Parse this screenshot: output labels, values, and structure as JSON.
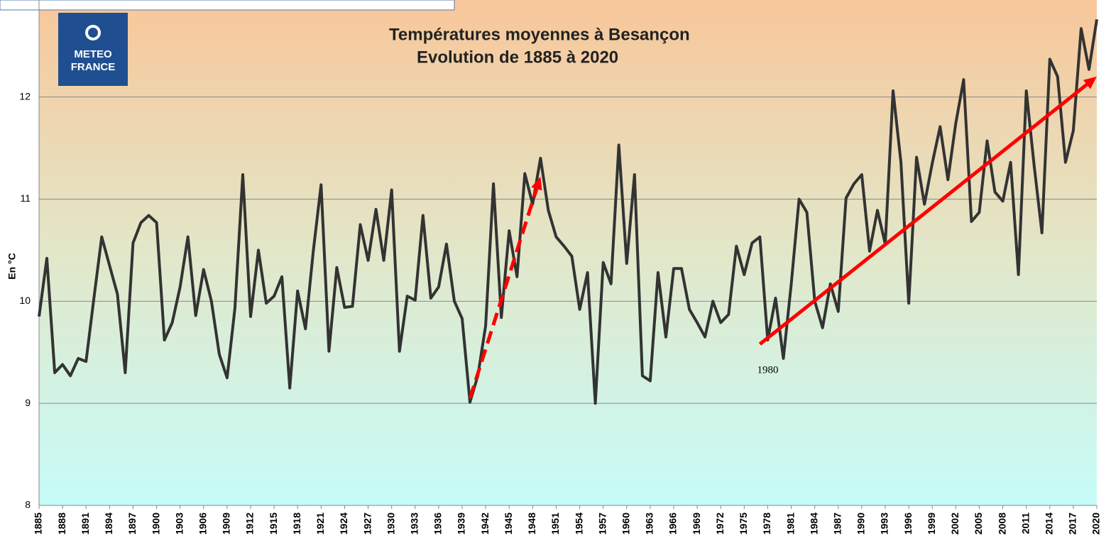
{
  "chart_data": {
    "type": "line",
    "title": [
      "Températures moyennes à Besançon",
      "Evolution de 1885 à 2020"
    ],
    "logo": [
      "METEO",
      "FRANCE"
    ],
    "y_label": "En °C",
    "color": "#333333",
    "x": [
      1885,
      1886,
      1887,
      1888,
      1889,
      1890,
      1891,
      1892,
      1893,
      1894,
      1895,
      1896,
      1897,
      1898,
      1899,
      1900,
      1901,
      1902,
      1903,
      1904,
      1905,
      1906,
      1907,
      1908,
      1909,
      1910,
      1911,
      1912,
      1913,
      1914,
      1915,
      1916,
      1917,
      1918,
      1919,
      1920,
      1921,
      1922,
      1923,
      1924,
      1925,
      1926,
      1927,
      1928,
      1929,
      1930,
      1931,
      1932,
      1933,
      1934,
      1935,
      1936,
      1937,
      1938,
      1939,
      1940,
      1941,
      1942,
      1943,
      1944,
      1945,
      1946,
      1947,
      1948,
      1949,
      1950,
      1951,
      1952,
      1953,
      1954,
      1955,
      1956,
      1957,
      1958,
      1959,
      1960,
      1961,
      1962,
      1963,
      1964,
      1965,
      1966,
      1967,
      1968,
      1969,
      1970,
      1971,
      1972,
      1973,
      1974,
      1975,
      1976,
      1977,
      1978,
      1979,
      1980,
      1981,
      1982,
      1983,
      1984,
      1985,
      1986,
      1987,
      1988,
      1989,
      1990,
      1991,
      1992,
      1993,
      1994,
      1995,
      1996,
      1997,
      1998,
      1999,
      2000,
      2001,
      2002,
      2003,
      2004,
      2005,
      2006,
      2007,
      2008,
      2009,
      2010,
      2011,
      2012,
      2013,
      2014,
      2015,
      2016,
      2017,
      2018,
      2019,
      2020
    ],
    "values": [
      9.85,
      10.42,
      9.3,
      9.38,
      9.27,
      9.44,
      9.41,
      10.03,
      10.63,
      10.35,
      10.07,
      9.3,
      10.57,
      10.77,
      10.84,
      10.77,
      9.62,
      9.79,
      10.14,
      10.63,
      9.86,
      10.31,
      10.0,
      9.48,
      9.25,
      9.93,
      11.24,
      9.85,
      10.5,
      9.98,
      10.05,
      10.24,
      9.15,
      10.1,
      9.73,
      10.49,
      11.14,
      9.51,
      10.33,
      9.94,
      9.95,
      10.75,
      10.4,
      10.9,
      10.4,
      11.09,
      9.51,
      10.05,
      10.01,
      10.84,
      10.03,
      10.14,
      10.56,
      10.0,
      9.83,
      9.01,
      9.27,
      9.76,
      11.15,
      9.84,
      10.69,
      10.24,
      11.25,
      10.95,
      11.4,
      10.89,
      10.63,
      10.54,
      10.44,
      9.92,
      10.28,
      9.0,
      10.38,
      10.17,
      11.53,
      10.37,
      11.24,
      9.27,
      9.22,
      10.28,
      9.65,
      10.32,
      10.32,
      9.92,
      9.79,
      9.65,
      10.0,
      9.79,
      9.87,
      10.54,
      10.26,
      10.57,
      10.63,
      9.62,
      10.03,
      9.44,
      10.17,
      11.0,
      10.87,
      10.0,
      9.74,
      10.17,
      9.9,
      11.01,
      11.15,
      11.24,
      10.49,
      10.89,
      10.56,
      12.06,
      11.36,
      9.98,
      11.41,
      10.95,
      11.35,
      11.71,
      11.19,
      11.74,
      12.17,
      10.78,
      10.87,
      11.57,
      11.07,
      10.98,
      11.36,
      10.26,
      12.06,
      11.33,
      10.67,
      12.37,
      12.2,
      11.36,
      11.67,
      12.67,
      12.27,
      12.76
    ],
    "xlim": [
      1885,
      2020
    ],
    "xticks": [
      1885,
      1888,
      1891,
      1894,
      1897,
      1900,
      1903,
      1906,
      1909,
      1912,
      1915,
      1918,
      1921,
      1924,
      1927,
      1930,
      1933,
      1936,
      1939,
      1942,
      1945,
      1948,
      1951,
      1954,
      1957,
      1960,
      1963,
      1966,
      1969,
      1972,
      1975,
      1978,
      1981,
      1984,
      1987,
      1990,
      1993,
      1996,
      1999,
      2002,
      2005,
      2008,
      2011,
      2014,
      2017,
      2020
    ],
    "ylim": [
      8,
      12.95
    ],
    "yticks": [
      8,
      9,
      10,
      11,
      12
    ],
    "grid": true,
    "arrows": [
      {
        "x": [
          1940,
          1949
        ],
        "y": [
          9.05,
          11.22
        ],
        "style": "dashed",
        "color": "#ff0000"
      },
      {
        "x": [
          1977,
          2020
        ],
        "y": [
          9.58,
          12.2
        ],
        "style": "solid",
        "color": "#ff0000"
      }
    ],
    "annotations": [
      {
        "text": "1980",
        "x": 1978,
        "y": 9.32
      }
    ]
  }
}
